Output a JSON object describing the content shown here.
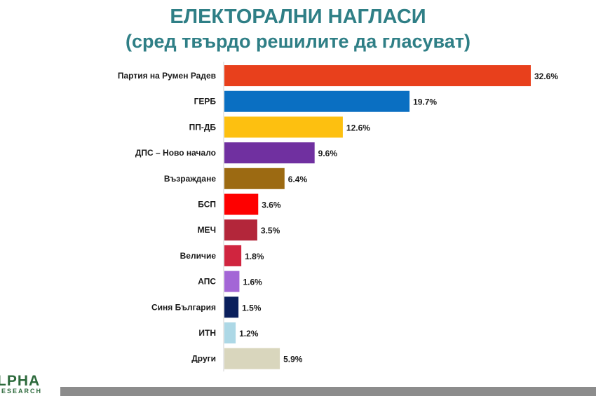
{
  "chart_data": {
    "type": "bar",
    "orientation": "horizontal",
    "title": "ЕЛЕКТОРАЛНИ НАГЛАСИ",
    "subtitle": "(сред твърдо решилите да гласуват)",
    "categories": [
      "Партия на Румен Радев",
      "ГЕРБ",
      "ПП-ДБ",
      "ДПС – Ново начало",
      "Възраждане",
      "БСП",
      "МЕЧ",
      "Величие",
      "АПС",
      "Синя България",
      "ИТН",
      "Други"
    ],
    "values": [
      32.6,
      19.7,
      12.6,
      9.6,
      6.4,
      3.6,
      3.5,
      1.8,
      1.6,
      1.5,
      1.2,
      5.9
    ],
    "value_labels": [
      "32.6%",
      "19.7%",
      "12.6%",
      "9.6%",
      "6.4%",
      "3.6%",
      "3.5%",
      "1.8%",
      "1.6%",
      "1.5%",
      "1.2%",
      "5.9%"
    ],
    "colors": [
      "#e8401c",
      "#0a6fc2",
      "#fdc010",
      "#7030a0",
      "#9c6a12",
      "#fe0000",
      "#b3263a",
      "#d0253f",
      "#a366d6",
      "#0a1f5c",
      "#add8e6",
      "#d9d6bd"
    ],
    "xlim": [
      0,
      32.6
    ],
    "grid": false,
    "legend": "none"
  },
  "logo": {
    "main": "LPHA",
    "sub": "ESEARCH"
  }
}
